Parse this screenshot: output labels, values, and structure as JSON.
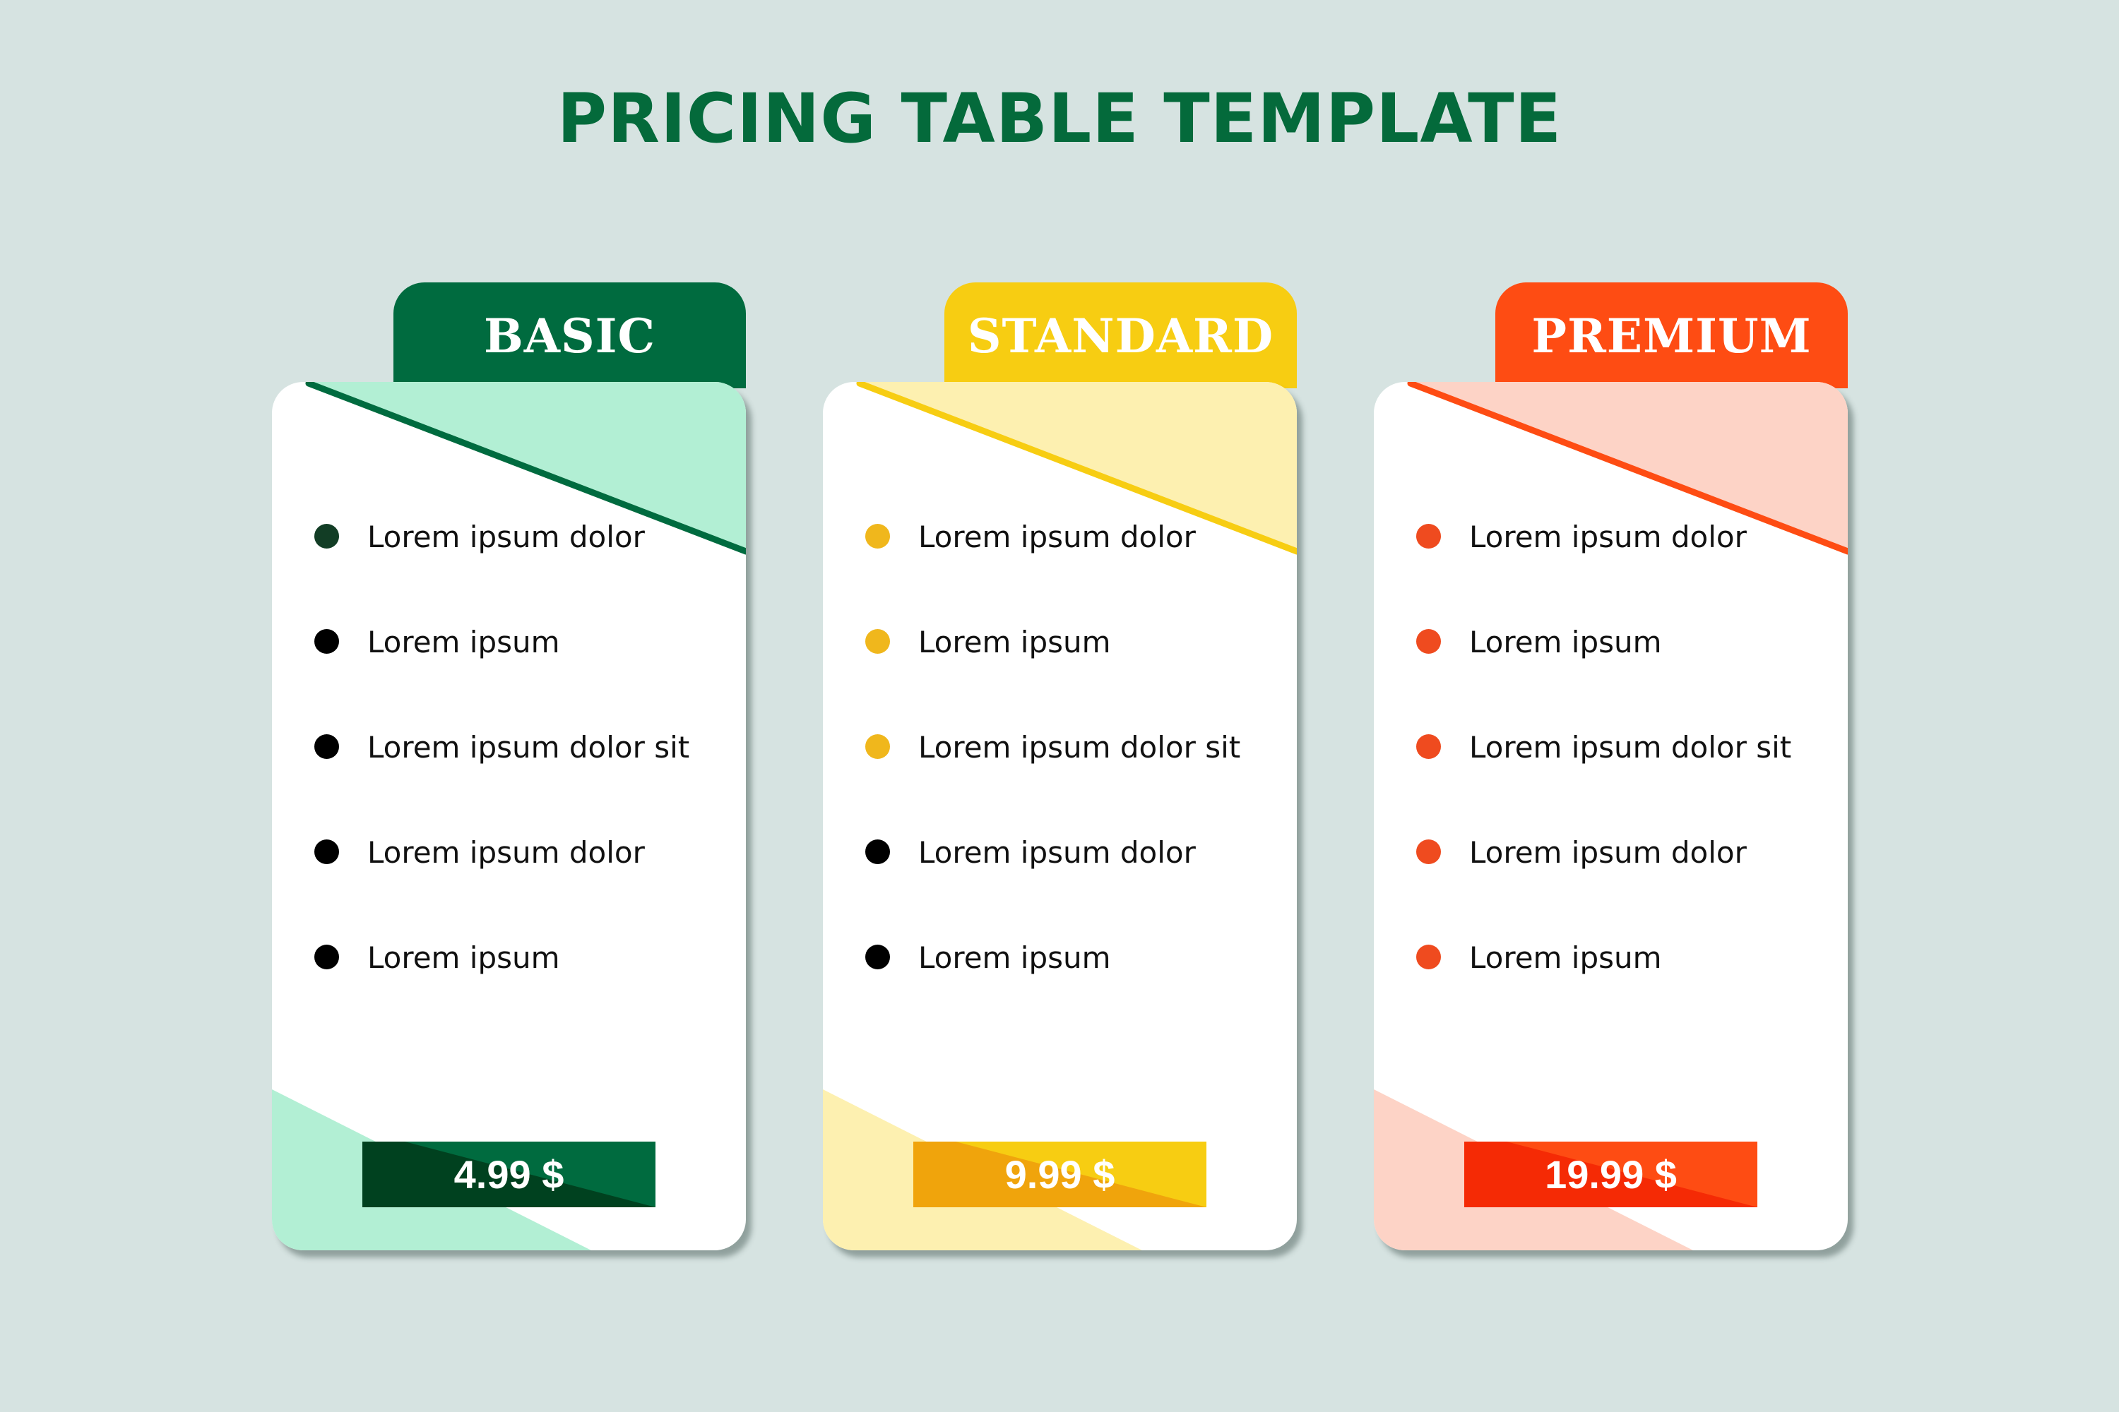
{
  "title": "PRICING TABLE TEMPLATE",
  "colors": {
    "background": "#d6e3e1",
    "title": "#046a3b"
  },
  "plans": [
    {
      "name": "BASIC",
      "price": "4.99 $",
      "accent": "#006b3f",
      "light": "#b2efd4",
      "price_dark": "#00411f",
      "features": [
        {
          "text": "Lorem ipsum dolor",
          "bullet": "#123d25"
        },
        {
          "text": "Lorem ipsum",
          "bullet": "#000000"
        },
        {
          "text": "Lorem ipsum dolor sit",
          "bullet": "#000000"
        },
        {
          "text": "Lorem ipsum dolor",
          "bullet": "#000000"
        },
        {
          "text": "Lorem ipsum",
          "bullet": "#000000"
        }
      ]
    },
    {
      "name": "STANDARD",
      "price": "9.99 $",
      "accent": "#f7cd12",
      "light": "#fdf0b0",
      "price_dark": "#f0a40c",
      "features": [
        {
          "text": "Lorem ipsum dolor",
          "bullet": "#f0b71c"
        },
        {
          "text": "Lorem ipsum",
          "bullet": "#f0b71c"
        },
        {
          "text": "Lorem ipsum dolor sit",
          "bullet": "#f0b71c"
        },
        {
          "text": "Lorem ipsum dolor",
          "bullet": "#000000"
        },
        {
          "text": "Lorem ipsum",
          "bullet": "#000000"
        }
      ]
    },
    {
      "name": "PREMIUM",
      "price": "19.99 $",
      "accent": "#fe4c13",
      "light": "#fdd3c6",
      "price_dark": "#f52a05",
      "features": [
        {
          "text": "Lorem ipsum dolor",
          "bullet": "#ef4b1f"
        },
        {
          "text": "Lorem ipsum",
          "bullet": "#ef4b1f"
        },
        {
          "text": "Lorem ipsum dolor sit",
          "bullet": "#ef4b1f"
        },
        {
          "text": "Lorem ipsum dolor",
          "bullet": "#ef4b1f"
        },
        {
          "text": "Lorem ipsum",
          "bullet": "#ef4b1f"
        }
      ]
    }
  ]
}
